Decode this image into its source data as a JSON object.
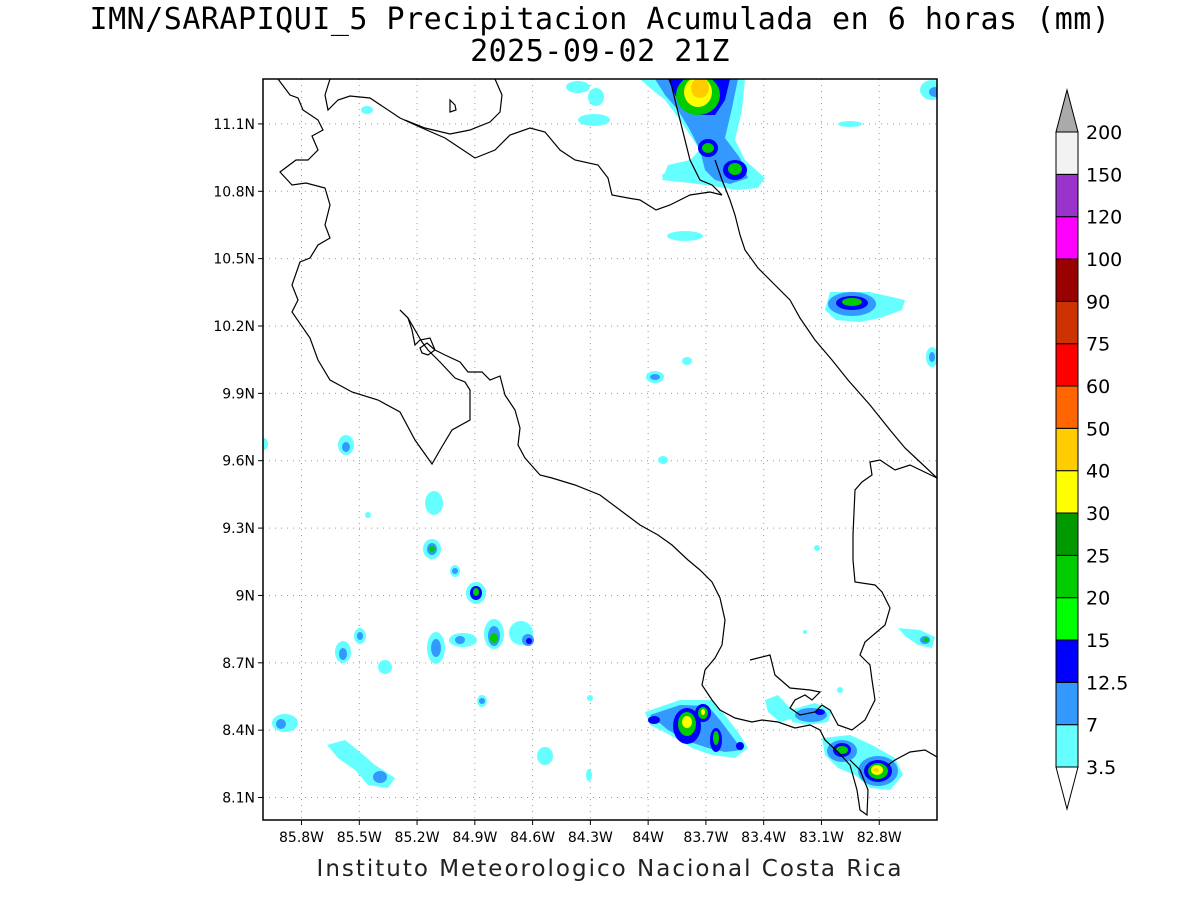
{
  "title": "IMN/SARAPIQUI_5 Precipitacion Acumulada en 6 horas (mm)",
  "subtitle": "2025-09-02 21Z",
  "footer": "Instituto Meteorologico Nacional Costa Rica",
  "map": {
    "lon_range": [
      -86.0,
      -82.5
    ],
    "lat_range": [
      8.0,
      11.3
    ],
    "lon_ticks": [
      {
        "value": -85.8,
        "label": "85.8W"
      },
      {
        "value": -85.5,
        "label": "85.5W"
      },
      {
        "value": -85.2,
        "label": "85.2W"
      },
      {
        "value": -84.9,
        "label": "84.9W"
      },
      {
        "value": -84.6,
        "label": "84.6W"
      },
      {
        "value": -84.3,
        "label": "84.3W"
      },
      {
        "value": -84.0,
        "label": "84W"
      },
      {
        "value": -83.7,
        "label": "83.7W"
      },
      {
        "value": -83.4,
        "label": "83.4W"
      },
      {
        "value": -83.1,
        "label": "83.1W"
      },
      {
        "value": -82.8,
        "label": "82.8W"
      }
    ],
    "lat_ticks": [
      {
        "value": 8.1,
        "label": "8.1N"
      },
      {
        "value": 8.4,
        "label": "8.4N"
      },
      {
        "value": 8.7,
        "label": "8.7N"
      },
      {
        "value": 9.0,
        "label": "9N"
      },
      {
        "value": 9.3,
        "label": "9.3N"
      },
      {
        "value": 9.6,
        "label": "9.6N"
      },
      {
        "value": 9.9,
        "label": "9.9N"
      },
      {
        "value": 10.2,
        "label": "10.2N"
      },
      {
        "value": 10.5,
        "label": "10.5N"
      },
      {
        "value": 10.8,
        "label": "10.8N"
      },
      {
        "value": 11.1,
        "label": "11.1N"
      }
    ],
    "grid": "dotted"
  },
  "colorbar": {
    "levels": [
      "3.5",
      "7",
      "12.5",
      "15",
      "20",
      "25",
      "30",
      "40",
      "50",
      "60",
      "75",
      "90",
      "100",
      "120",
      "150",
      "200"
    ],
    "colors": [
      "#66ffff",
      "#3399ff",
      "#0000ff",
      "#00ff00",
      "#00cc00",
      "#009900",
      "#ffff00",
      "#ffcc00",
      "#ff6600",
      "#ff0000",
      "#cc3300",
      "#990000",
      "#ff00ff",
      "#9933cc",
      "#f2f2f2",
      "#aaaaaa"
    ]
  }
}
